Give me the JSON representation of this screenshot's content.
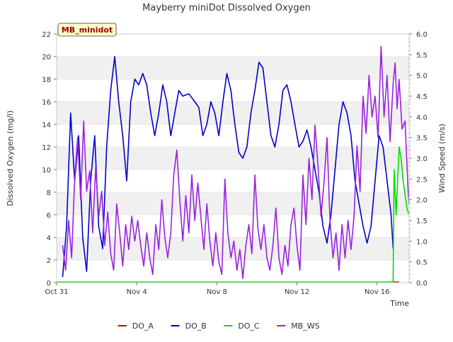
{
  "chart_data": {
    "type": "line",
    "title": "Mayberry miniDot Dissolved Oxygen",
    "xlabel": "Time",
    "ylabel": "Dissolved Oxygen (mg/l)",
    "y2label": "Wind Speed (m/s)",
    "annotation": "MB_minidot",
    "ylim": [
      0,
      22
    ],
    "y2lim": [
      0,
      6
    ],
    "xlim": [
      "Oct 31",
      "Nov 17.6"
    ],
    "x_unit": "days since Oct 31",
    "x_range_days": [
      0,
      17.6
    ],
    "x_tick_labels": [
      {
        "day": 0,
        "label": "Oct 31"
      },
      {
        "day": 4,
        "label": "Nov 4"
      },
      {
        "day": 8,
        "label": "Nov 8"
      },
      {
        "day": 12,
        "label": "Nov 12"
      },
      {
        "day": 16,
        "label": "Nov 16"
      }
    ],
    "y_ticks": [
      0,
      2,
      4,
      6,
      8,
      10,
      12,
      14,
      16,
      18,
      20,
      22
    ],
    "y2_ticks": [
      "0.0",
      "0.5",
      "1.0",
      "1.5",
      "2.0",
      "2.5",
      "3.0",
      "3.5",
      "4.0",
      "4.5",
      "5.0",
      "5.5",
      "6.0"
    ],
    "grid": "horizontal bands",
    "legend_position": "bottom",
    "series": [
      {
        "name": "DO_A",
        "axis": "left",
        "color": "#cc0000",
        "points": [
          [
            16.5,
            0.05
          ],
          [
            17.1,
            0.05
          ]
        ]
      },
      {
        "name": "DO_B",
        "axis": "left",
        "color": "#0000cc",
        "points": [
          [
            0.3,
            0.5
          ],
          [
            0.5,
            5
          ],
          [
            0.7,
            15
          ],
          [
            0.9,
            9
          ],
          [
            1.1,
            13
          ],
          [
            1.3,
            4
          ],
          [
            1.5,
            1
          ],
          [
            1.7,
            9
          ],
          [
            1.9,
            13
          ],
          [
            2.1,
            5
          ],
          [
            2.3,
            3
          ],
          [
            2.5,
            12
          ],
          [
            2.7,
            17
          ],
          [
            2.9,
            20
          ],
          [
            3.1,
            16
          ],
          [
            3.3,
            13
          ],
          [
            3.5,
            9
          ],
          [
            3.7,
            16
          ],
          [
            3.9,
            18
          ],
          [
            4.1,
            17.5
          ],
          [
            4.3,
            18.5
          ],
          [
            4.5,
            17.5
          ],
          [
            4.7,
            15
          ],
          [
            4.9,
            13
          ],
          [
            5.1,
            15
          ],
          [
            5.3,
            17.5
          ],
          [
            5.5,
            16
          ],
          [
            5.7,
            13
          ],
          [
            5.9,
            15
          ],
          [
            6.1,
            17
          ],
          [
            6.3,
            16.5
          ],
          [
            6.6,
            16.7
          ],
          [
            6.9,
            16
          ],
          [
            7.1,
            15.5
          ],
          [
            7.3,
            13
          ],
          [
            7.5,
            14
          ],
          [
            7.7,
            16
          ],
          [
            7.9,
            15
          ],
          [
            8.1,
            13
          ],
          [
            8.3,
            16
          ],
          [
            8.5,
            18.5
          ],
          [
            8.7,
            17
          ],
          [
            8.9,
            14
          ],
          [
            9.1,
            11.5
          ],
          [
            9.3,
            11
          ],
          [
            9.5,
            12
          ],
          [
            9.7,
            15
          ],
          [
            9.9,
            17
          ],
          [
            10.1,
            19.5
          ],
          [
            10.3,
            19
          ],
          [
            10.5,
            16
          ],
          [
            10.7,
            13
          ],
          [
            10.9,
            12
          ],
          [
            11.1,
            14
          ],
          [
            11.3,
            17
          ],
          [
            11.5,
            17.5
          ],
          [
            11.7,
            16
          ],
          [
            11.9,
            14
          ],
          [
            12.1,
            12
          ],
          [
            12.3,
            12.5
          ],
          [
            12.5,
            13.5
          ],
          [
            12.7,
            12
          ],
          [
            12.9,
            10
          ],
          [
            13.1,
            8
          ],
          [
            13.3,
            5
          ],
          [
            13.5,
            3.5
          ],
          [
            13.7,
            6
          ],
          [
            13.9,
            10
          ],
          [
            14.1,
            14
          ],
          [
            14.3,
            16
          ],
          [
            14.5,
            15
          ],
          [
            14.7,
            13
          ],
          [
            14.9,
            9
          ],
          [
            15.1,
            7
          ],
          [
            15.3,
            5
          ],
          [
            15.5,
            3.5
          ],
          [
            15.7,
            5
          ],
          [
            15.9,
            9
          ],
          [
            16.1,
            13
          ],
          [
            16.3,
            12
          ],
          [
            16.5,
            9
          ],
          [
            16.7,
            6
          ],
          [
            16.8,
            3
          ]
        ]
      },
      {
        "name": "DO_C",
        "axis": "left",
        "color": "#00dd00",
        "points": [
          [
            0,
            0.05
          ],
          [
            16.8,
            0.05
          ],
          [
            16.85,
            10
          ],
          [
            16.95,
            6
          ],
          [
            17.1,
            12
          ],
          [
            17.2,
            11
          ],
          [
            17.3,
            9
          ],
          [
            17.5,
            6.5
          ],
          [
            17.6,
            6
          ]
        ]
      },
      {
        "name": "MB_WS",
        "axis": "right",
        "color": "#9922dd",
        "points": [
          [
            0.3,
            0.9
          ],
          [
            0.45,
            0.3
          ],
          [
            0.6,
            1.5
          ],
          [
            0.75,
            0.6
          ],
          [
            0.9,
            2.5
          ],
          [
            1.05,
            3.5
          ],
          [
            1.2,
            2
          ],
          [
            1.35,
            3.9
          ],
          [
            1.5,
            2.2
          ],
          [
            1.65,
            2.7
          ],
          [
            1.8,
            1.2
          ],
          [
            1.95,
            2.8
          ],
          [
            2.1,
            1.6
          ],
          [
            2.25,
            2.2
          ],
          [
            2.4,
            0.9
          ],
          [
            2.55,
            1.7
          ],
          [
            2.7,
            0.7
          ],
          [
            2.85,
            0.3
          ],
          [
            3.0,
            1.9
          ],
          [
            3.15,
            1.2
          ],
          [
            3.3,
            0.4
          ],
          [
            3.45,
            1.4
          ],
          [
            3.6,
            0.8
          ],
          [
            3.75,
            1.6
          ],
          [
            3.9,
            1.0
          ],
          [
            4.05,
            1.5
          ],
          [
            4.2,
            0.9
          ],
          [
            4.35,
            0.4
          ],
          [
            4.5,
            1.2
          ],
          [
            4.65,
            0.6
          ],
          [
            4.8,
            0.2
          ],
          [
            4.95,
            1.4
          ],
          [
            5.1,
            0.8
          ],
          [
            5.25,
            2.0
          ],
          [
            5.4,
            1.1
          ],
          [
            5.55,
            0.6
          ],
          [
            5.7,
            1.2
          ],
          [
            5.85,
            2.6
          ],
          [
            6.0,
            3.2
          ],
          [
            6.15,
            2.0
          ],
          [
            6.3,
            1.0
          ],
          [
            6.45,
            2.1
          ],
          [
            6.6,
            1.2
          ],
          [
            6.75,
            2.6
          ],
          [
            6.9,
            1.5
          ],
          [
            7.05,
            2.4
          ],
          [
            7.2,
            1.6
          ],
          [
            7.35,
            0.8
          ],
          [
            7.5,
            1.9
          ],
          [
            7.65,
            1.0
          ],
          [
            7.8,
            0.4
          ],
          [
            7.95,
            1.2
          ],
          [
            8.1,
            0.5
          ],
          [
            8.25,
            0.2
          ],
          [
            8.4,
            2.5
          ],
          [
            8.55,
            1.2
          ],
          [
            8.7,
            0.6
          ],
          [
            8.85,
            1.0
          ],
          [
            9.0,
            0.3
          ],
          [
            9.15,
            0.8
          ],
          [
            9.3,
            0.1
          ],
          [
            9.45,
            0.9
          ],
          [
            9.6,
            1.4
          ],
          [
            9.75,
            0.7
          ],
          [
            9.9,
            2.6
          ],
          [
            10.05,
            1.3
          ],
          [
            10.2,
            0.8
          ],
          [
            10.35,
            1.4
          ],
          [
            10.5,
            0.6
          ],
          [
            10.65,
            0.3
          ],
          [
            10.8,
            0.9
          ],
          [
            10.95,
            1.8
          ],
          [
            11.1,
            0.6
          ],
          [
            11.25,
            0.2
          ],
          [
            11.4,
            0.9
          ],
          [
            11.55,
            0.4
          ],
          [
            11.7,
            1.4
          ],
          [
            11.85,
            1.8
          ],
          [
            12.0,
            0.9
          ],
          [
            12.15,
            0.3
          ],
          [
            12.3,
            2.6
          ],
          [
            12.45,
            1.4
          ],
          [
            12.6,
            3.0
          ],
          [
            12.75,
            2.0
          ],
          [
            12.9,
            3.8
          ],
          [
            13.05,
            2.8
          ],
          [
            13.2,
            1.6
          ],
          [
            13.35,
            2.4
          ],
          [
            13.5,
            3.5
          ],
          [
            13.65,
            1.5
          ],
          [
            13.8,
            0.6
          ],
          [
            13.95,
            1.2
          ],
          [
            14.1,
            0.3
          ],
          [
            14.25,
            1.4
          ],
          [
            14.4,
            0.6
          ],
          [
            14.55,
            1.5
          ],
          [
            14.7,
            0.8
          ],
          [
            14.85,
            1.6
          ],
          [
            15.0,
            3.3
          ],
          [
            15.15,
            2.2
          ],
          [
            15.3,
            4.5
          ],
          [
            15.45,
            3.6
          ],
          [
            15.6,
            5.0
          ],
          [
            15.75,
            4.0
          ],
          [
            15.9,
            4.5
          ],
          [
            16.05,
            3.5
          ],
          [
            16.2,
            5.7
          ],
          [
            16.35,
            4.0
          ],
          [
            16.5,
            5.0
          ],
          [
            16.65,
            3.4
          ],
          [
            16.8,
            4.8
          ],
          [
            16.9,
            5.3
          ],
          [
            17.0,
            4.2
          ],
          [
            17.1,
            4.9
          ],
          [
            17.25,
            3.7
          ],
          [
            17.4,
            3.9
          ],
          [
            17.55,
            2.2
          ],
          [
            17.6,
            1.9
          ]
        ]
      }
    ]
  }
}
